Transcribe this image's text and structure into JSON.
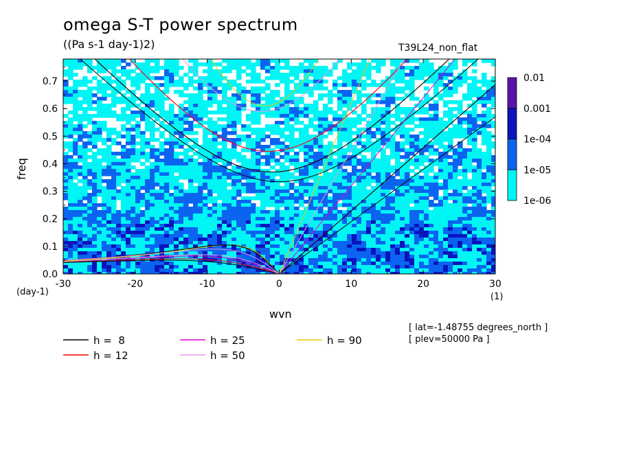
{
  "title": "omega S-T power spectrum",
  "subtitle": "((Pa s-1 day-1)2)",
  "run_label": "T39L24_non_flat",
  "meta": {
    "lat": "[ lat=-1.48755 degrees_north ]",
    "plev": "[ plev=50000 Pa ]"
  },
  "colors": {
    "levels": [
      "#00f5f5",
      "#0a64f0",
      "#0a14be",
      "#5a14aa"
    ],
    "lines": {
      "h8": "#000000",
      "h12": "#ff0000",
      "h25": "#e600c8",
      "h50": "#e696e6",
      "h90": "#f0c800"
    }
  },
  "chart_data": {
    "type": "heatmap",
    "title": "omega S-T power spectrum",
    "subtitle": "((Pa s-1 day-1)2)",
    "xlabel": "wvn",
    "ylabel": "freq",
    "x_unit": "(1)",
    "y_unit": "(day-1)",
    "xlim": [
      -30,
      30
    ],
    "ylim": [
      0,
      0.78
    ],
    "x_ticks": [
      -30,
      -20,
      -10,
      0,
      10,
      20,
      30
    ],
    "x_tick_labels": [
      "-30",
      "-20",
      "-10",
      "0",
      "10",
      "20",
      "30"
    ],
    "y_ticks": [
      0,
      0.1,
      0.2,
      0.3,
      0.4,
      0.5,
      0.6,
      0.7
    ],
    "y_tick_labels": [
      "0.0",
      "0.1",
      "0.2",
      "0.3",
      "0.4",
      "0.5",
      "0.6",
      "0.7"
    ],
    "colorbar": {
      "levels": [
        "1e-06",
        "1e-05",
        "1e-04",
        "0.001",
        "0.01"
      ],
      "colors": [
        "#00f5f5",
        "#0a64f0",
        "#0a14be",
        "#5a14aa"
      ]
    },
    "dispersion_curves": [
      {
        "name": "h =  8",
        "color": "#000000",
        "h": 8
      },
      {
        "name": "h = 12",
        "color": "#ff0000",
        "h": 12
      },
      {
        "name": "h = 25",
        "color": "#e600c8",
        "h": 25
      },
      {
        "name": "h = 50",
        "color": "#e696e6",
        "h": 50
      },
      {
        "name": "h = 90",
        "color": "#f0c800",
        "h": 90
      }
    ],
    "curve_values": {
      "wvn": [
        -30,
        -20,
        -10,
        0,
        10,
        20,
        30
      ],
      "kelvin_h8": [
        null,
        null,
        null,
        0,
        0.19,
        0.38,
        0.57
      ],
      "kelvin_h12": [
        null,
        null,
        null,
        0,
        0.23,
        0.46,
        0.69
      ],
      "ig_n1_h8_freq_at_0": 0.335,
      "ig_n1_h12_freq_at_0": 0.37,
      "ig_n1_h25_freq_at_0": 0.445,
      "ig_n1_h90_freq_at_0": 0.61,
      "rossby_h8_max": 0.105
    },
    "legend_position": "bottom"
  }
}
